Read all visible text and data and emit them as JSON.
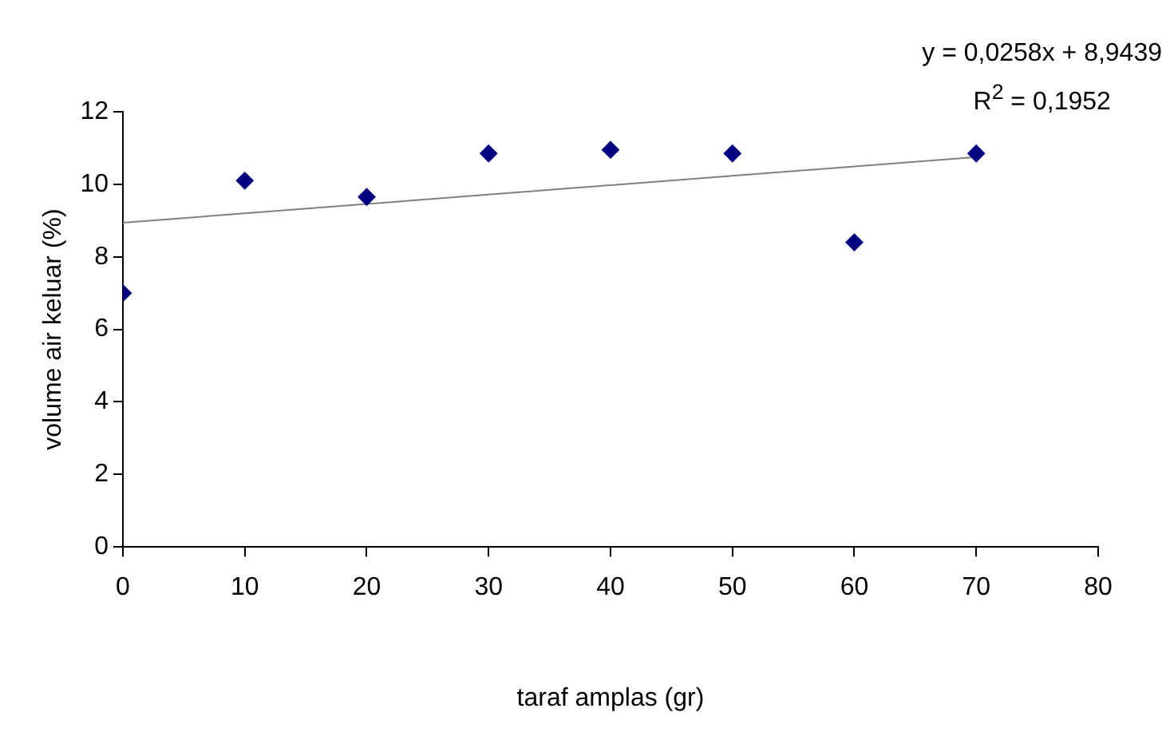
{
  "chart_data": {
    "type": "scatter",
    "xlabel": "taraf amplas (gr)",
    "ylabel": "volume air keluar (%)",
    "annotations": [
      "y = 0,0258x + 8,9439",
      "R$^{2}$ = 0,1952"
    ],
    "series": [
      {
        "color": "#000080",
        "marker": "diamond",
        "x": [
          0,
          10,
          20,
          30,
          40,
          50,
          60,
          70
        ],
        "values": [
          7.0,
          10.1,
          9.65,
          10.85,
          10.95,
          10.85,
          8.4,
          10.85
        ]
      },
      {
        "type": "line",
        "color": "#808080",
        "marker": "none",
        "x": [
          0,
          70
        ],
        "values": [
          8.94,
          10.75
        ]
      }
    ],
    "xlim": [
      0,
      80
    ],
    "xticks": [
      0,
      10,
      20,
      30,
      40,
      50,
      60,
      70,
      80
    ],
    "ylim": [
      0,
      12
    ],
    "yticks": [
      0,
      2,
      4,
      6,
      8,
      10,
      12
    ],
    "grid": false,
    "legend": false
  }
}
